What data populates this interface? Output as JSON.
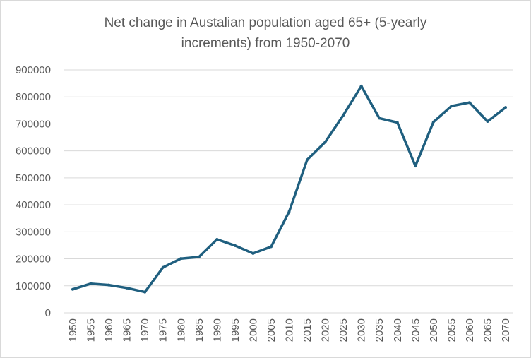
{
  "chart_data": {
    "type": "line",
    "title_lines": [
      "Net change in Austalian population aged 65+ (5-yearly",
      "increments) from 1950-2070"
    ],
    "xlabel": "",
    "ylabel": "",
    "categories": [
      "1950",
      "1955",
      "1960",
      "1965",
      "1970",
      "1975",
      "1980",
      "1985",
      "1990",
      "1995",
      "2000",
      "2005",
      "2010",
      "2015",
      "2020",
      "2025",
      "2030",
      "2035",
      "2040",
      "2045",
      "2050",
      "2055",
      "2060",
      "2065",
      "2070"
    ],
    "series": [
      {
        "values": [
          87000,
          108000,
          103000,
          92000,
          77000,
          168000,
          201000,
          207000,
          272000,
          249000,
          220000,
          245000,
          375000,
          567000,
          633000,
          732000,
          840000,
          721000,
          705000,
          544000,
          707000,
          766000,
          779000,
          709000,
          761000
        ]
      }
    ],
    "ylim": [
      0,
      900000
    ],
    "yticks": [
      0,
      100000,
      200000,
      300000,
      400000,
      500000,
      600000,
      700000,
      800000,
      900000
    ],
    "ytick_labels": [
      "0",
      "100000",
      "200000",
      "300000",
      "400000",
      "500000",
      "600000",
      "700000",
      "800000",
      "900000"
    ],
    "grid": true,
    "legend": "none",
    "colors": {
      "line": "#1f5f7f",
      "grid": "#d9d9d9",
      "text": "#595959"
    }
  }
}
